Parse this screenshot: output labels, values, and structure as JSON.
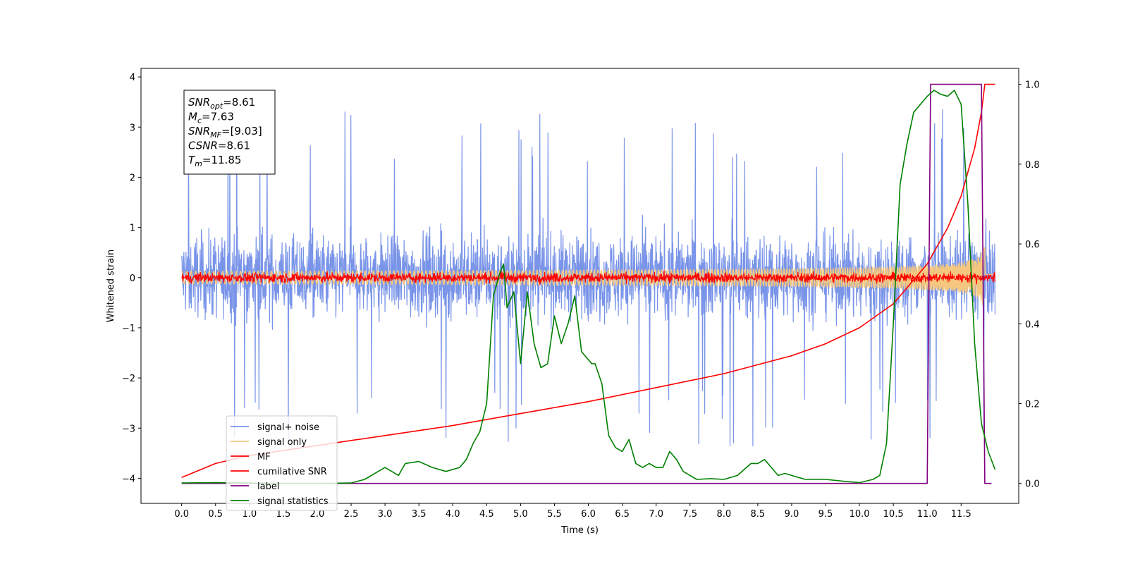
{
  "chart_data": {
    "type": "line",
    "title": "",
    "xlabel": "Time (s)",
    "ylabel": "Whitened strain",
    "xlim": [
      -0.6,
      12.35
    ],
    "ylim": [
      -4.5,
      4.17
    ],
    "y2lim": [
      -0.05,
      1.04
    ],
    "x_ticks": [
      0.0,
      0.5,
      1.0,
      1.5,
      2.0,
      2.5,
      3.0,
      3.5,
      4.0,
      4.5,
      5.0,
      5.5,
      6.0,
      6.5,
      7.0,
      7.5,
      8.0,
      8.5,
      9.0,
      9.5,
      10.0,
      10.5,
      11.0,
      11.5
    ],
    "x_tick_labels": [
      "0.0",
      "0.5",
      "1.0",
      "1.5",
      "2.0",
      "2.5",
      "3.0",
      "3.5",
      "4.0",
      "4.5",
      "5.0",
      "5.5",
      "6.0",
      "6.5",
      "7.0",
      "7.5",
      "8.0",
      "8.5",
      "9.0",
      "9.5",
      "10.0",
      "10.5",
      "11.0",
      "11.5"
    ],
    "y_ticks": [
      -4,
      -3,
      -2,
      -1,
      0,
      1,
      2,
      3,
      4
    ],
    "y_tick_labels": [
      "−4",
      "−3",
      "−2",
      "−1",
      "0",
      "1",
      "2",
      "3",
      "4"
    ],
    "y2_ticks": [
      0.0,
      0.2,
      0.4,
      0.6,
      0.8,
      1.0
    ],
    "y2_tick_labels": [
      "0.0",
      "0.2",
      "0.4",
      "0.6",
      "0.8",
      "1.0"
    ],
    "grid": false,
    "legend_position": "lower-left",
    "annotation": {
      "lines": [
        {
          "main": "SNR",
          "sub": "opt",
          "rest": "=8.61"
        },
        {
          "main": "M",
          "sub": "c",
          "rest": "=7.63"
        },
        {
          "main": "SNR",
          "sub": "MF",
          "rest": "=[9.03]"
        },
        {
          "main": "CSNR",
          "sub": "",
          "rest": "=8.61"
        },
        {
          "main": "T",
          "sub": "m",
          "rest": "=11.85"
        }
      ]
    },
    "series": [
      {
        "name": "signal+ noise",
        "color": "#7994e8",
        "axis": "left",
        "kind": "noise_band",
        "t_start": 0.0,
        "t_end": 12.0,
        "amplitude": 1.05,
        "offset": 0.02,
        "spike_max": 3.8,
        "spike_min": -4.15
      },
      {
        "name": "signal only",
        "color": "#f5c77e",
        "axis": "left",
        "kind": "chirp",
        "t_start": 0.0,
        "t_end": 12.0,
        "merger_time": 11.85,
        "peak_amplitude": 0.62
      },
      {
        "name": "MF",
        "color": "#ff0000",
        "axis": "left",
        "kind": "noise_band",
        "t_start": 0.0,
        "t_end": 12.0,
        "amplitude": 0.12,
        "offset": 0.0
      },
      {
        "name": "cumilative SNR",
        "color": "#ff0000",
        "axis": "right",
        "x": [
          0.0,
          0.5,
          1.0,
          2.0,
          3.0,
          4.0,
          5.0,
          6.0,
          7.0,
          8.0,
          9.0,
          9.5,
          10.0,
          10.5,
          11.0,
          11.3,
          11.5,
          11.7,
          11.8,
          11.85,
          12.0
        ],
        "y": [
          0.015,
          0.05,
          0.07,
          0.095,
          0.12,
          0.145,
          0.175,
          0.205,
          0.24,
          0.275,
          0.32,
          0.35,
          0.39,
          0.45,
          0.55,
          0.64,
          0.72,
          0.84,
          0.93,
          1.0,
          1.0
        ]
      },
      {
        "name": "label",
        "color": "#800080",
        "axis": "right",
        "x": [
          0.0,
          11.0,
          11.05,
          11.8,
          11.85,
          11.95
        ],
        "y": [
          0.0,
          0.0,
          1.0,
          1.0,
          0.0,
          0.0
        ]
      },
      {
        "name": "signal statistics",
        "color": "#008000",
        "axis": "right",
        "x": [
          0.0,
          0.5,
          1.0,
          1.5,
          2.0,
          2.5,
          2.7,
          2.9,
          3.0,
          3.2,
          3.3,
          3.5,
          3.7,
          3.9,
          4.1,
          4.2,
          4.3,
          4.4,
          4.5,
          4.6,
          4.7,
          4.75,
          4.8,
          4.9,
          5.0,
          5.1,
          5.2,
          5.3,
          5.4,
          5.5,
          5.6,
          5.7,
          5.8,
          5.9,
          6.0,
          6.05,
          6.1,
          6.2,
          6.3,
          6.4,
          6.5,
          6.6,
          6.7,
          6.8,
          6.9,
          7.0,
          7.1,
          7.2,
          7.3,
          7.4,
          7.5,
          7.6,
          7.8,
          8.0,
          8.2,
          8.4,
          8.5,
          8.6,
          8.7,
          8.8,
          8.9,
          9.0,
          9.2,
          9.5,
          9.8,
          10.0,
          10.2,
          10.3,
          10.4,
          10.5,
          10.6,
          10.7,
          10.8,
          11.0,
          11.1,
          11.2,
          11.3,
          11.4,
          11.5,
          11.6,
          11.7,
          11.8,
          11.9,
          12.0
        ],
        "y": [
          0.001,
          0.002,
          0.001,
          0.0,
          0.0,
          0.001,
          0.01,
          0.03,
          0.04,
          0.02,
          0.05,
          0.055,
          0.04,
          0.03,
          0.04,
          0.06,
          0.1,
          0.13,
          0.2,
          0.47,
          0.53,
          0.55,
          0.44,
          0.48,
          0.3,
          0.48,
          0.35,
          0.29,
          0.3,
          0.42,
          0.35,
          0.4,
          0.47,
          0.33,
          0.31,
          0.3,
          0.3,
          0.25,
          0.12,
          0.09,
          0.08,
          0.11,
          0.05,
          0.04,
          0.05,
          0.04,
          0.04,
          0.08,
          0.06,
          0.03,
          0.02,
          0.01,
          0.012,
          0.01,
          0.02,
          0.05,
          0.05,
          0.06,
          0.04,
          0.02,
          0.025,
          0.02,
          0.01,
          0.01,
          0.005,
          0.002,
          0.01,
          0.02,
          0.1,
          0.4,
          0.75,
          0.85,
          0.93,
          0.97,
          0.985,
          0.975,
          0.97,
          0.985,
          0.95,
          0.7,
          0.35,
          0.15,
          0.08,
          0.035
        ]
      }
    ]
  }
}
